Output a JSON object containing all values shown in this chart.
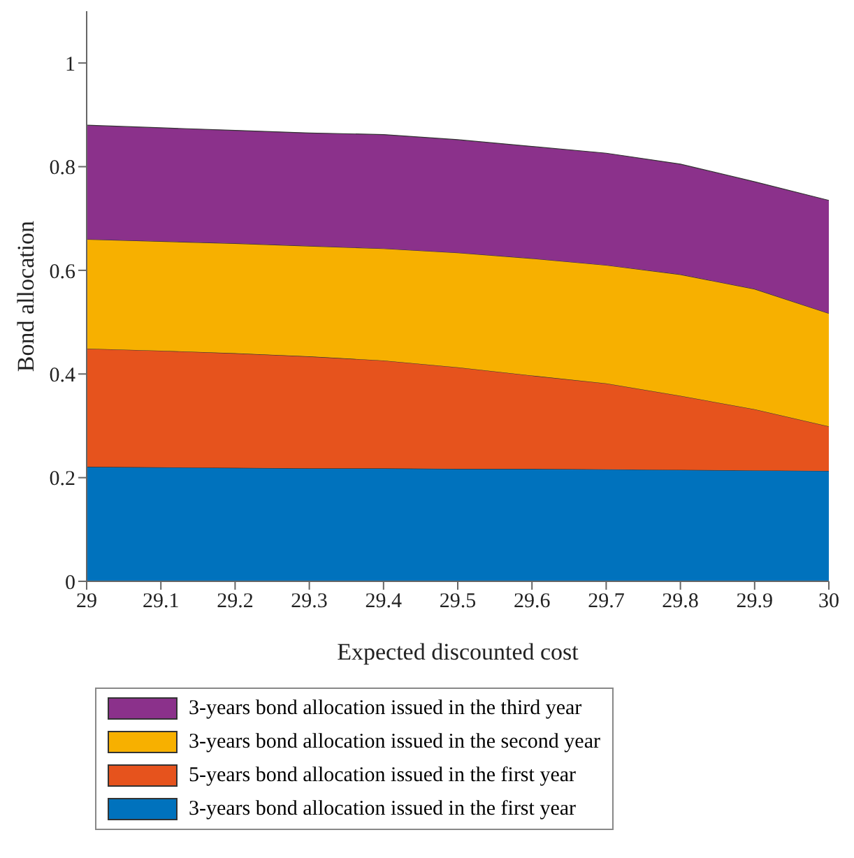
{
  "chart_data": {
    "type": "area",
    "xlabel": "Expected discounted cost",
    "ylabel": "Bond allocation",
    "x": [
      29,
      29.1,
      29.2,
      29.3,
      29.4,
      29.5,
      29.6,
      29.7,
      29.8,
      29.9,
      30
    ],
    "stacked": true,
    "series": [
      {
        "name": "3-years bond allocation issued in the first year",
        "color": "#0072bd",
        "values": [
          0.221,
          0.22,
          0.219,
          0.218,
          0.218,
          0.217,
          0.217,
          0.216,
          0.215,
          0.214,
          0.213
        ]
      },
      {
        "name": "5-years bond allocation issued in the first year",
        "color": "#e6531d",
        "values": [
          0.228,
          0.225,
          0.221,
          0.216,
          0.208,
          0.196,
          0.18,
          0.166,
          0.143,
          0.118,
          0.086
        ]
      },
      {
        "name": "3-years bond allocation issued in the second year",
        "color": "#f7b000",
        "values": [
          0.211,
          0.211,
          0.212,
          0.213,
          0.216,
          0.221,
          0.226,
          0.228,
          0.234,
          0.232,
          0.218
        ]
      },
      {
        "name": "3-years bond allocation issued in the third year",
        "color": "#8b318b",
        "values": [
          0.22,
          0.219,
          0.218,
          0.218,
          0.22,
          0.218,
          0.216,
          0.216,
          0.213,
          0.207,
          0.218
        ]
      }
    ],
    "xlim": [
      29,
      30
    ],
    "xticks": [
      29,
      29.1,
      29.2,
      29.3,
      29.4,
      29.5,
      29.6,
      29.7,
      29.8,
      29.9,
      30
    ],
    "ylim": [
      0,
      1.1
    ],
    "yticks": [
      0,
      0.2,
      0.4,
      0.6,
      0.8,
      1
    ],
    "grid": false,
    "legend": "bottom"
  }
}
